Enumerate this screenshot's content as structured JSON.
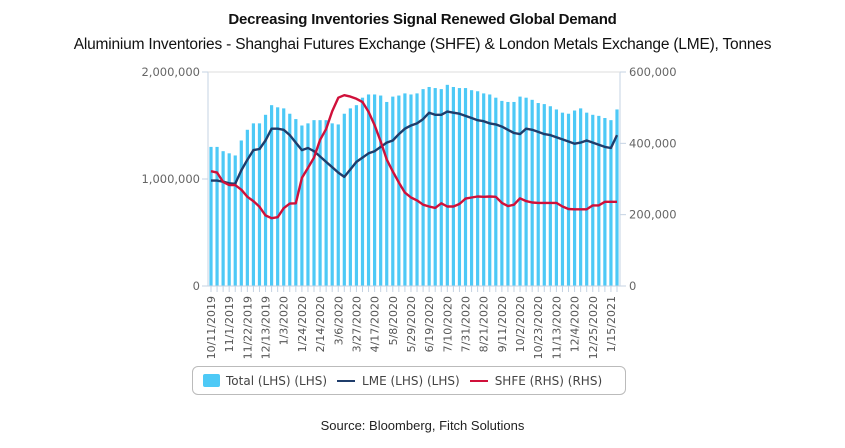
{
  "chart_data": {
    "type": "bar",
    "title": "Decreasing Inventories Signal Renewed Global Demand",
    "subtitle": "Aluminium Inventories - Shanghai Futures Exchange (SHFE) & London Metals Exchange (LME), Tonnes",
    "source": "Source: Bloomberg, Fitch Solutions",
    "xlabel": "",
    "ylabel": "",
    "y_left": {
      "range": [
        0,
        2000000
      ],
      "ticks": [
        "0",
        "1,000,000",
        "2,000,000"
      ],
      "tick_values": [
        0,
        1000000,
        2000000
      ]
    },
    "y_right": {
      "range": [
        0,
        600000
      ],
      "ticks": [
        "0",
        "200,000",
        "400,000",
        "600,000"
      ],
      "tick_values": [
        0,
        200000,
        400000,
        600000
      ]
    },
    "grid": false,
    "legend_position": "bottom",
    "x_tick_labels": [
      "10/11/2019",
      "11/1/2019",
      "11/22/2019",
      "12/13/2019",
      "1/3/2020",
      "1/24/2020",
      "2/14/2020",
      "3/6/2020",
      "3/27/2020",
      "4/17/2020",
      "5/8/2020",
      "5/29/2020",
      "6/19/2020",
      "7/10/2020",
      "7/31/2020",
      "8/21/2020",
      "9/11/2020",
      "10/2/2020",
      "10/23/2020",
      "11/13/2020",
      "12/4/2020",
      "12/25/2020",
      "1/15/2021"
    ],
    "x_tick_every": 3,
    "series": [
      {
        "name": "Total (LHS) (LHS)",
        "type": "bar",
        "axis": "left",
        "color": "#4dc9f6",
        "values": [
          1300000,
          1300000,
          1260000,
          1240000,
          1220000,
          1360000,
          1460000,
          1520000,
          1520000,
          1600000,
          1690000,
          1670000,
          1660000,
          1610000,
          1560000,
          1500000,
          1520000,
          1550000,
          1550000,
          1550000,
          1520000,
          1510000,
          1610000,
          1660000,
          1690000,
          1760000,
          1790000,
          1790000,
          1780000,
          1720000,
          1770000,
          1780000,
          1800000,
          1790000,
          1800000,
          1840000,
          1860000,
          1850000,
          1840000,
          1880000,
          1860000,
          1850000,
          1850000,
          1830000,
          1820000,
          1800000,
          1790000,
          1760000,
          1730000,
          1720000,
          1720000,
          1770000,
          1760000,
          1740000,
          1710000,
          1700000,
          1680000,
          1650000,
          1620000,
          1610000,
          1640000,
          1660000,
          1620000,
          1600000,
          1590000,
          1570000,
          1550000,
          1650000
        ]
      },
      {
        "name": "LME (LHS) (LHS)",
        "type": "line",
        "axis": "left",
        "color": "#1f3d6b",
        "values": [
          985000,
          985000,
          975000,
          960000,
          955000,
          1080000,
          1180000,
          1270000,
          1280000,
          1360000,
          1470000,
          1470000,
          1460000,
          1410000,
          1340000,
          1270000,
          1290000,
          1260000,
          1210000,
          1160000,
          1110000,
          1060000,
          1020000,
          1090000,
          1160000,
          1200000,
          1240000,
          1260000,
          1300000,
          1340000,
          1360000,
          1420000,
          1470000,
          1500000,
          1520000,
          1560000,
          1620000,
          1600000,
          1600000,
          1630000,
          1620000,
          1610000,
          1590000,
          1570000,
          1550000,
          1540000,
          1520000,
          1510000,
          1490000,
          1460000,
          1430000,
          1420000,
          1470000,
          1460000,
          1440000,
          1420000,
          1410000,
          1390000,
          1370000,
          1350000,
          1330000,
          1340000,
          1360000,
          1340000,
          1320000,
          1300000,
          1290000,
          1410000
        ]
      },
      {
        "name": "SHFE (RHS) (RHS)",
        "type": "line",
        "axis": "right",
        "color": "#d0103a",
        "values": [
          322000,
          318000,
          292000,
          283000,
          283000,
          270000,
          250000,
          238000,
          222000,
          198000,
          190000,
          193000,
          218000,
          231000,
          232000,
          303000,
          331000,
          360000,
          410000,
          440000,
          490000,
          528000,
          535000,
          531000,
          525000,
          516000,
          488000,
          451000,
          405000,
          355000,
          321000,
          290000,
          262000,
          248000,
          240000,
          228000,
          223000,
          219000,
          232000,
          223000,
          223000,
          230000,
          245000,
          248000,
          251000,
          250000,
          251000,
          250000,
          233000,
          224000,
          228000,
          246000,
          238000,
          234000,
          233000,
          233000,
          233000,
          233000,
          223000,
          216000,
          215000,
          215000,
          215000,
          226000,
          226000,
          236000,
          236000,
          236000
        ]
      }
    ]
  }
}
